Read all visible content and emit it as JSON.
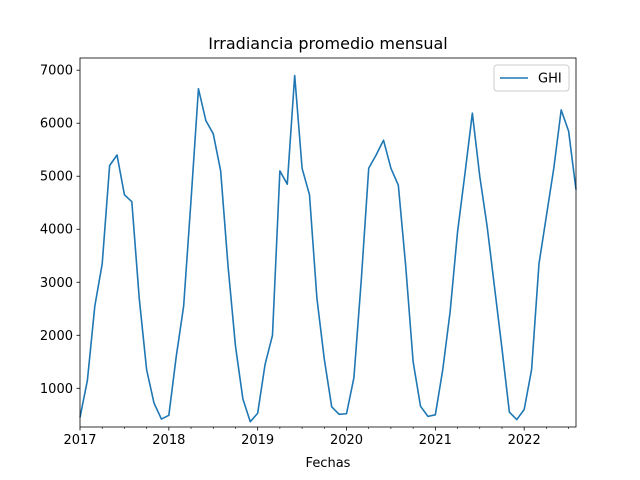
{
  "chart_data": {
    "type": "line",
    "title": "Irradiancia promedio mensual",
    "xlabel": "Fechas",
    "ylabel": "",
    "x_tick_labels": [
      "2017",
      "2018",
      "2019",
      "2020",
      "2021",
      "2022"
    ],
    "y_tick_labels": [
      "1000",
      "2000",
      "3000",
      "4000",
      "5000",
      "6000",
      "7000"
    ],
    "xlim": [
      "2017-01",
      "2022-08"
    ],
    "ylim": [
      270,
      7230
    ],
    "grid": false,
    "legend_position": "upper right",
    "colors": {
      "GHI": "#1f77b4"
    },
    "series": [
      {
        "name": "GHI",
        "x": [
          "2017-01",
          "2017-02",
          "2017-03",
          "2017-04",
          "2017-05",
          "2017-06",
          "2017-07",
          "2017-08",
          "2017-09",
          "2017-10",
          "2017-11",
          "2017-12",
          "2018-01",
          "2018-02",
          "2018-03",
          "2018-04",
          "2018-05",
          "2018-06",
          "2018-07",
          "2018-08",
          "2018-09",
          "2018-10",
          "2018-11",
          "2018-12",
          "2019-01",
          "2019-02",
          "2019-03",
          "2019-04",
          "2019-05",
          "2019-06",
          "2019-07",
          "2019-08",
          "2019-09",
          "2019-10",
          "2019-11",
          "2019-12",
          "2020-01",
          "2020-02",
          "2020-03",
          "2020-04",
          "2020-05",
          "2020-06",
          "2020-07",
          "2020-08",
          "2020-09",
          "2020-10",
          "2020-11",
          "2020-12",
          "2021-01",
          "2021-02",
          "2021-03",
          "2021-04",
          "2021-05",
          "2021-06",
          "2021-07",
          "2021-08",
          "2021-09",
          "2021-10",
          "2021-11",
          "2021-12",
          "2022-01",
          "2022-02",
          "2022-03",
          "2022-04",
          "2022-05",
          "2022-06",
          "2022-07",
          "2022-08"
        ],
        "values": [
          450,
          1150,
          2550,
          3350,
          5200,
          5400,
          4650,
          4520,
          2700,
          1350,
          720,
          420,
          490,
          1600,
          2550,
          4550,
          6650,
          6050,
          5800,
          5100,
          3300,
          1800,
          800,
          370,
          530,
          1450,
          2000,
          5100,
          4850,
          6900,
          5150,
          4650,
          2700,
          1550,
          650,
          510,
          520,
          1200,
          3050,
          5150,
          5400,
          5680,
          5150,
          4830,
          3300,
          1500,
          660,
          470,
          500,
          1350,
          2450,
          3950,
          5050,
          6190,
          5000,
          4050,
          2900,
          1750,
          550,
          410,
          600,
          1350,
          3350,
          4250,
          5150,
          6250,
          5850,
          4750
        ]
      }
    ]
  }
}
